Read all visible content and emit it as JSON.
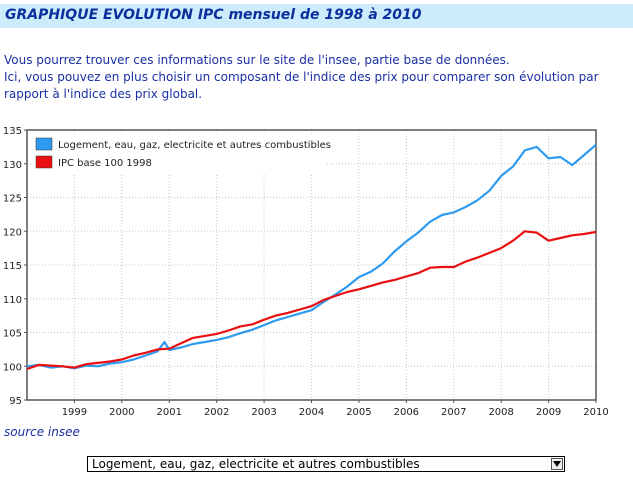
{
  "page": {
    "title": "GRAPHIQUE EVOLUTION IPC mensuel de 1998 à 2010",
    "intro_line1": "Vous pourrez trouver ces informations sur le site de l'insee, partie base de données.",
    "intro_line2": "Ici, vous pouvez en plus choisir un composant de l'indice des prix pour comparer son évolution par rapport à l'indice des prix global.",
    "source_label": "source insee"
  },
  "selector": {
    "selected": "Logement, eau, gaz, electricite et autres combustibles"
  },
  "chart_data": {
    "type": "line",
    "title": "",
    "xlabel": "",
    "ylabel": "",
    "xlim": [
      1998,
      2010
    ],
    "ylim": [
      95,
      135
    ],
    "yticks": [
      95,
      100,
      105,
      110,
      115,
      120,
      125,
      130,
      135
    ],
    "xticks": [
      1999,
      2000,
      2001,
      2002,
      2003,
      2004,
      2005,
      2006,
      2007,
      2008,
      2009,
      2010
    ],
    "grid": true,
    "legend_position": "top-left",
    "series": [
      {
        "name": "Logement, eau, gaz, electricite et autres combustibles",
        "color": "#2e9bf0",
        "x": [
          1998.0,
          1998.25,
          1998.5,
          1998.75,
          1999.0,
          1999.25,
          1999.5,
          1999.75,
          2000.0,
          2000.25,
          2000.5,
          2000.75,
          2000.9,
          2001.0,
          2001.25,
          2001.5,
          2001.75,
          2002.0,
          2002.25,
          2002.5,
          2002.75,
          2003.0,
          2003.25,
          2003.5,
          2003.75,
          2004.0,
          2004.25,
          2004.5,
          2004.75,
          2005.0,
          2005.25,
          2005.5,
          2005.75,
          2006.0,
          2006.25,
          2006.5,
          2006.75,
          2007.0,
          2007.25,
          2007.5,
          2007.75,
          2008.0,
          2008.25,
          2008.5,
          2008.75,
          2009.0,
          2009.25,
          2009.5,
          2009.75,
          2010.0
        ],
        "values": [
          100.0,
          100.2,
          99.8,
          100.0,
          99.7,
          100.1,
          100.0,
          100.4,
          100.6,
          101.0,
          101.6,
          102.2,
          103.6,
          102.4,
          102.8,
          103.3,
          103.6,
          103.9,
          104.3,
          104.9,
          105.4,
          106.1,
          106.8,
          107.3,
          107.8,
          108.3,
          109.5,
          110.6,
          111.8,
          113.2,
          114.0,
          115.2,
          117.0,
          118.5,
          119.8,
          121.4,
          122.4,
          122.8,
          123.6,
          124.6,
          126.0,
          128.2,
          129.6,
          132.0,
          132.5,
          130.8,
          131.0,
          129.8,
          131.3,
          132.8
        ]
      },
      {
        "name": "IPC base 100 1998",
        "color": "#e81010",
        "x": [
          1998.0,
          1998.25,
          1998.5,
          1998.75,
          1999.0,
          1999.25,
          1999.5,
          1999.75,
          2000.0,
          2000.25,
          2000.5,
          2000.75,
          2001.0,
          2001.25,
          2001.5,
          2001.75,
          2002.0,
          2002.25,
          2002.5,
          2002.75,
          2003.0,
          2003.25,
          2003.5,
          2003.75,
          2004.0,
          2004.25,
          2004.5,
          2004.75,
          2005.0,
          2005.25,
          2005.5,
          2005.75,
          2006.0,
          2006.25,
          2006.5,
          2006.75,
          2007.0,
          2007.25,
          2007.5,
          2007.75,
          2008.0,
          2008.25,
          2008.5,
          2008.75,
          2009.0,
          2009.25,
          2009.5,
          2009.75,
          2010.0
        ],
        "values": [
          99.6,
          100.2,
          100.1,
          100.0,
          99.8,
          100.3,
          100.5,
          100.7,
          101.0,
          101.6,
          102.0,
          102.5,
          102.6,
          103.4,
          104.2,
          104.5,
          104.8,
          105.3,
          105.9,
          106.2,
          106.9,
          107.5,
          107.9,
          108.4,
          108.9,
          109.8,
          110.4,
          111.0,
          111.4,
          111.9,
          112.4,
          112.8,
          113.3,
          113.8,
          114.6,
          114.7,
          114.7,
          115.5,
          116.1,
          116.8,
          117.5,
          118.6,
          120.0,
          119.8,
          118.6,
          119.0,
          119.4,
          119.6,
          119.9
        ]
      }
    ]
  }
}
